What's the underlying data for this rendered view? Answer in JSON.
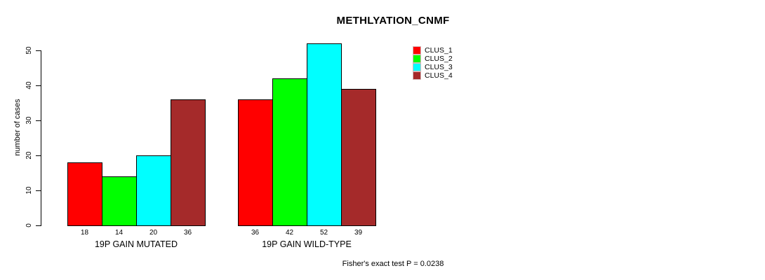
{
  "background_color": "#ffffff",
  "chart_data": {
    "type": "bar",
    "title": "METHLYATION_CNMF",
    "ylabel": "number of cases",
    "xlabel": "",
    "ylim": [
      0,
      50
    ],
    "yticks": [
      0,
      10,
      20,
      30,
      40,
      50
    ],
    "grid": false,
    "legend_position": "top-right",
    "bar_border_color": "#000000",
    "series": [
      {
        "name": "CLUS_1",
        "color": "#ff0000"
      },
      {
        "name": "CLUS_2",
        "color": "#00ff00"
      },
      {
        "name": "CLUS_3",
        "color": "#00ffff"
      },
      {
        "name": "CLUS_4",
        "color": "#a52a2a"
      }
    ],
    "groups": [
      {
        "label": "19P GAIN MUTATED",
        "values": [
          18,
          14,
          20,
          36
        ]
      },
      {
        "label": "19P GAIN WILD-TYPE",
        "values": [
          36,
          42,
          52,
          39
        ]
      }
    ],
    "bar_value_labels_shown": true,
    "annotation": "Fisher's exact test P = 0.0238"
  }
}
